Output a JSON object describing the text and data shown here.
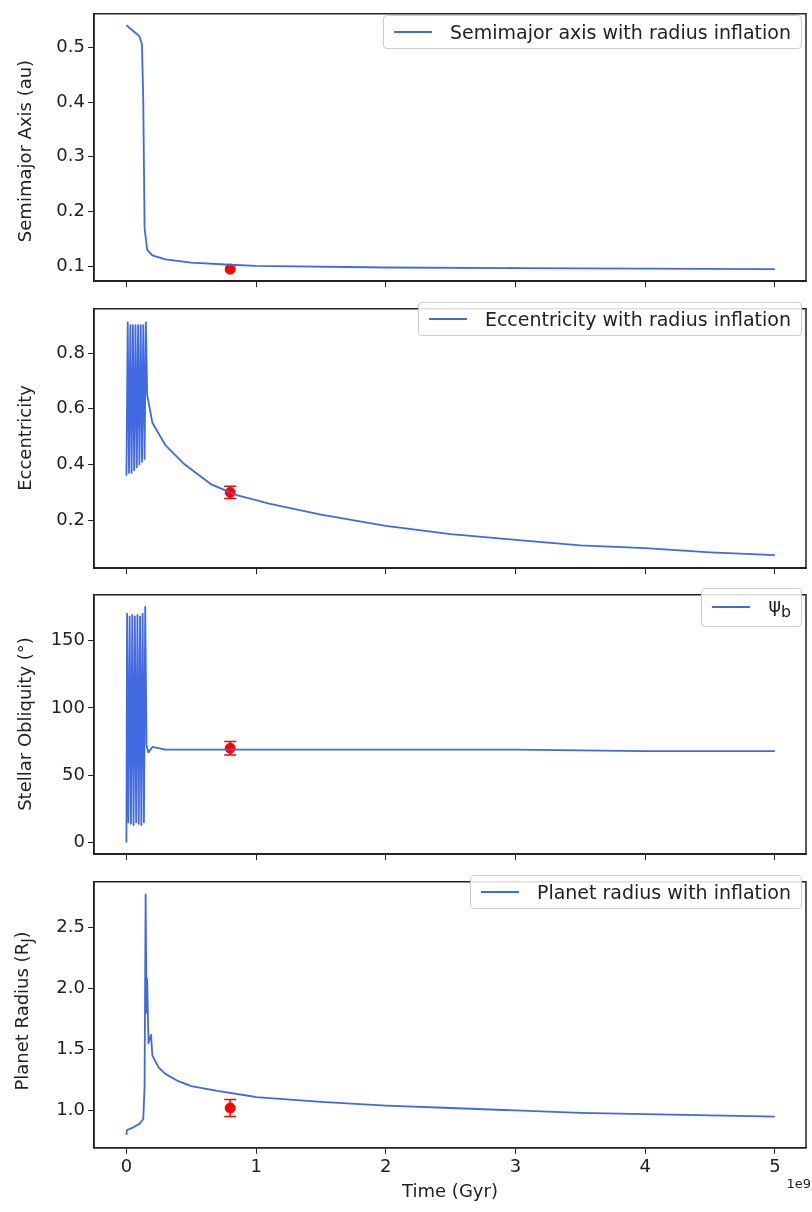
{
  "chart_data": [
    {
      "type": "line",
      "ylabel": "Semimajor Axis (au)",
      "xlim": [
        -0.25,
        5.24
      ],
      "xticks": [
        0,
        1,
        2,
        3,
        4,
        5
      ],
      "ylim": [
        0.073,
        0.561
      ],
      "yticks": [
        0.1,
        0.2,
        0.3,
        0.4,
        0.5
      ],
      "tick_labels": "y",
      "legend": "top right",
      "grid": false,
      "series": [
        {
          "name": "Semimajor axis with radius inflation",
          "color": "#4169e1",
          "x": [
            0,
            0.05,
            0.1,
            0.12,
            0.13,
            0.14,
            0.16,
            0.2,
            0.3,
            0.5,
            0.8,
            1,
            2,
            3,
            4,
            5
          ],
          "values": [
            0.54,
            0.53,
            0.52,
            0.505,
            0.4,
            0.17,
            0.13,
            0.12,
            0.113,
            0.107,
            0.103,
            0.101,
            0.098,
            0.097,
            0.096,
            0.095
          ]
        },
        {
          "type": "scatter",
          "marker": "circle",
          "color": "#ff0000",
          "x": [
            0.8
          ],
          "values": [
            0.095
          ]
        }
      ]
    },
    {
      "type": "line",
      "ylabel": "Eccentricity",
      "xlim": [
        -0.25,
        5.24
      ],
      "xticks": [
        0,
        1,
        2,
        3,
        4,
        5
      ],
      "ylim": [
        0.028,
        0.959
      ],
      "yticks": [
        0.2,
        0.4,
        0.6,
        0.8
      ],
      "tick_labels": "y",
      "legend": "top right",
      "grid": false,
      "series": [
        {
          "name": "Eccentricity with radius inflation",
          "color": "#4169e1",
          "x": [
            0,
            0.01,
            0.02,
            0.03,
            0.04,
            0.05,
            0.06,
            0.07,
            0.08,
            0.09,
            0.1,
            0.11,
            0.12,
            0.13,
            0.14,
            0.15,
            0.16,
            0.2,
            0.3,
            0.45,
            0.65,
            0.85,
            1.1,
            1.5,
            2,
            2.5,
            3,
            3.5,
            4,
            4.5,
            5
          ],
          "values": [
            0.36,
            0.91,
            0.37,
            0.9,
            0.37,
            0.9,
            0.38,
            0.9,
            0.39,
            0.9,
            0.4,
            0.9,
            0.41,
            0.9,
            0.42,
            0.91,
            0.65,
            0.55,
            0.47,
            0.4,
            0.33,
            0.29,
            0.26,
            0.22,
            0.18,
            0.15,
            0.13,
            0.11,
            0.1,
            0.085,
            0.075
          ]
        },
        {
          "type": "scatter",
          "marker": "circle",
          "color": "#ff0000",
          "x": [
            0.8
          ],
          "values": [
            0.3
          ],
          "errors": [
            0.022
          ]
        }
      ]
    },
    {
      "type": "line",
      "ylabel": "Stellar Obliquity (°)",
      "xlim": [
        -0.25,
        5.24
      ],
      "xticks": [
        0,
        1,
        2,
        3,
        4,
        5
      ],
      "ylim": [
        -8.6,
        184
      ],
      "yticks": [
        0,
        50,
        100,
        150
      ],
      "tick_labels": "y",
      "legend": "top right",
      "grid": false,
      "series": [
        {
          "name": "ψ$_{b}$",
          "color": "#4169e1",
          "x": [
            0,
            0.005,
            0.015,
            0.025,
            0.035,
            0.045,
            0.055,
            0.065,
            0.075,
            0.085,
            0.095,
            0.105,
            0.115,
            0.125,
            0.135,
            0.145,
            0.155,
            0.17,
            0.2,
            0.3,
            0.5,
            1,
            2,
            3,
            4,
            5
          ],
          "values": [
            0,
            170,
            15,
            168,
            14,
            169,
            13,
            168,
            15,
            169,
            14,
            168,
            13,
            170,
            15,
            175,
            72,
            67,
            71,
            69,
            69,
            69,
            69,
            69,
            68,
            68
          ]
        },
        {
          "type": "scatter",
          "marker": "circle",
          "color": "#ff0000",
          "x": [
            0.8
          ],
          "values": [
            70
          ],
          "errors": [
            5
          ]
        }
      ]
    },
    {
      "type": "line",
      "ylabel": "Planet Radius (R$_{J}$)",
      "xlabel": "Time (Gyr)",
      "annotations": [
        "1e9"
      ],
      "xlim": [
        -0.25,
        5.24
      ],
      "xticks": [
        0,
        1,
        2,
        3,
        4,
        5
      ],
      "ylim": [
        0.694,
        2.874
      ],
      "yticks": [
        {
          "value": 1,
          "label": "1.0"
        },
        1.5,
        {
          "value": 2,
          "label": "2.0"
        },
        2.5
      ],
      "legend": "top right",
      "grid": false,
      "series": [
        {
          "name": "Planet radius with inflation",
          "color": "#4169e1",
          "x": [
            0,
            0.005,
            0.05,
            0.1,
            0.13,
            0.14,
            0.148,
            0.155,
            0.16,
            0.17,
            0.19,
            0.2,
            0.25,
            0.3,
            0.4,
            0.5,
            0.7,
            1,
            1.5,
            2,
            2.5,
            3,
            3.5,
            4,
            4.5,
            5
          ],
          "values": [
            0.8,
            0.84,
            0.86,
            0.89,
            0.93,
            1.2,
            2.77,
            1.8,
            2.08,
            1.55,
            1.62,
            1.45,
            1.35,
            1.3,
            1.24,
            1.2,
            1.16,
            1.11,
            1.07,
            1.04,
            1.02,
            1.0,
            0.98,
            0.97,
            0.96,
            0.95
          ]
        },
        {
          "type": "scatter",
          "marker": "circle",
          "color": "#ff0000",
          "x": [
            0.8
          ],
          "values": [
            1.02
          ],
          "errors": [
            0.07
          ]
        }
      ]
    }
  ]
}
